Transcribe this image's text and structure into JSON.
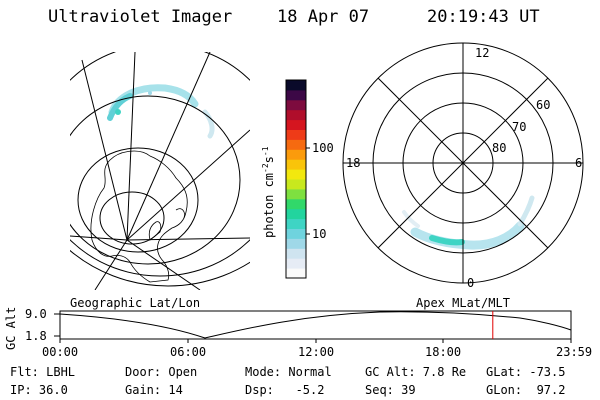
{
  "header": {
    "instrument": "Ultraviolet Imager",
    "date": "18 Apr 07",
    "time": "20:19:43 UT"
  },
  "colorbar": {
    "unit_label": "photon cm",
    "unit_exp1": "-2",
    "unit_mid": "s",
    "unit_exp2": "-1",
    "ticks": [
      "100",
      "10"
    ],
    "colors": [
      "#fafafa",
      "#e6ecf5",
      "#cfe4f0",
      "#9fd8e8",
      "#6fd3de",
      "#3fd4c4",
      "#22d49e",
      "#31d86a",
      "#7ee040",
      "#c8e81e",
      "#f2e80e",
      "#f9c40a",
      "#fb9b0c",
      "#f66a10",
      "#ee3b18",
      "#d5151f",
      "#b00e2b",
      "#7d0b3e",
      "#3c0846",
      "#0a0a2a"
    ]
  },
  "polar": {
    "labels": [
      "12",
      "18",
      "6",
      "0",
      "60",
      "70",
      "80"
    ]
  },
  "plot_labels": {
    "left_map": "Geographic Lat/Lon",
    "right_map": "Apex MLat/MLT"
  },
  "timeline": {
    "ylabel": "GC Alt",
    "y_top": "9.0",
    "y_bottom": "1.8",
    "x_ticks": [
      "00:00",
      "06:00",
      "12:00",
      "18:00",
      "23:59"
    ],
    "current_marker": 0.847
  },
  "footer": {
    "flt": "Flt: LBHL",
    "ip": "IP: 36.0",
    "door": "Door: Open",
    "gain": "Gain: 14",
    "mode": "Mode: Normal",
    "dsp": "Dsp:   -5.2",
    "gcalt": "GC Alt: 7.8 Re",
    "seq": "Seq: 39",
    "glat": "GLat: -73.5",
    "glon": "GLon:  97.2"
  }
}
